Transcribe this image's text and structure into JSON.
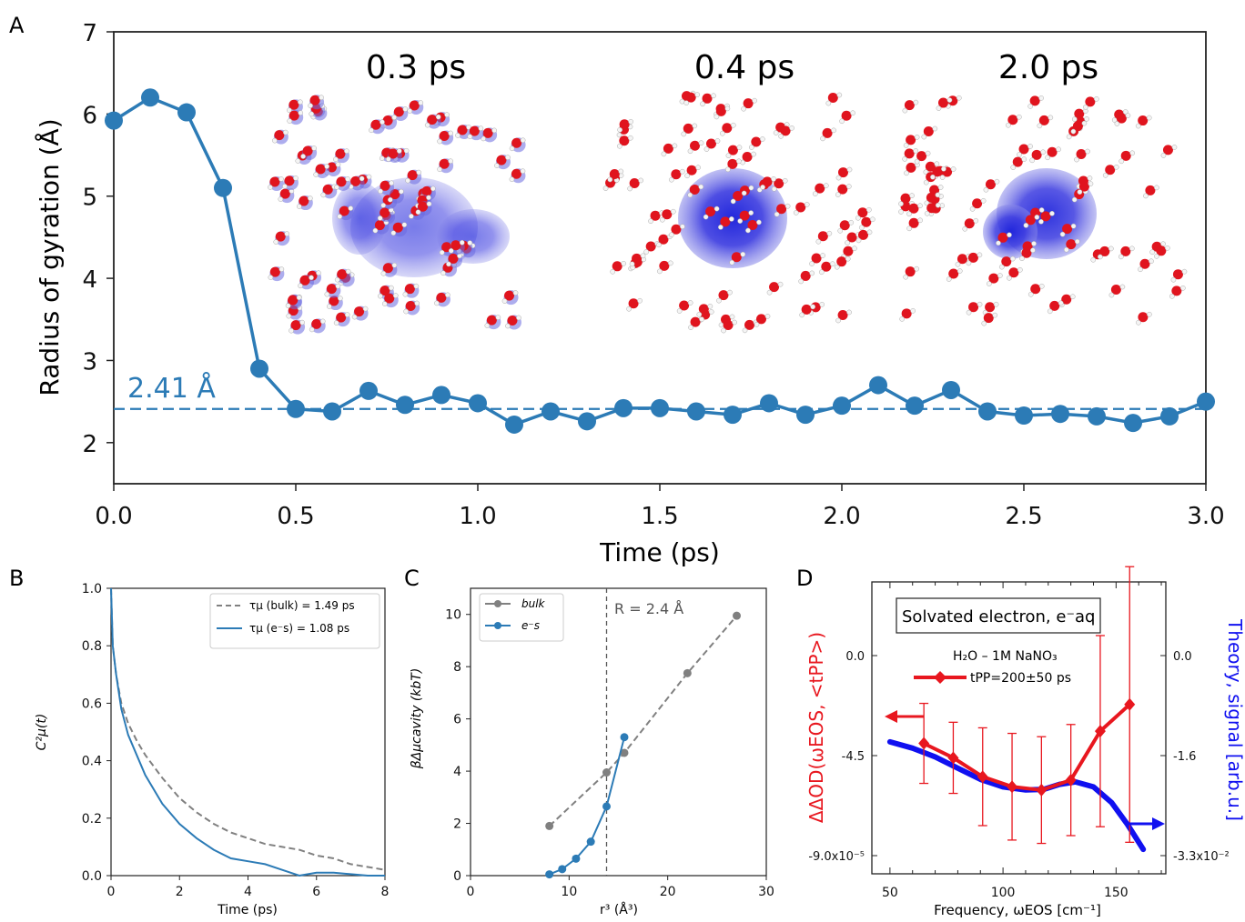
{
  "panel_labels": [
    "A",
    "B",
    "C",
    "D"
  ],
  "chart_data": [
    {
      "panel": "A",
      "type": "line",
      "xlabel": "Time (ps)",
      "ylabel": "Radius of gyration (Å)",
      "xlim": [
        0,
        3.0
      ],
      "ylim": [
        1.5,
        7
      ],
      "xticks": [
        "0.0",
        "0.5",
        "1.0",
        "1.5",
        "2.0",
        "2.5",
        "3.0"
      ],
      "yticks": [
        "2",
        "3",
        "4",
        "5",
        "6",
        "7"
      ],
      "grid": false,
      "color": "#2c7bb6",
      "reference_line": {
        "y": 2.41,
        "label": "2.41 Å"
      },
      "inset_labels": [
        "0.3 ps",
        "0.4 ps",
        "2.0 ps"
      ],
      "x": [
        0.0,
        0.1,
        0.2,
        0.3,
        0.4,
        0.5,
        0.6,
        0.7,
        0.8,
        0.9,
        1.0,
        1.1,
        1.2,
        1.3,
        1.4,
        1.5,
        1.6,
        1.7,
        1.8,
        1.9,
        2.0,
        2.1,
        2.2,
        2.3,
        2.4,
        2.5,
        2.6,
        2.7,
        2.8,
        2.9,
        3.0
      ],
      "y": [
        5.92,
        6.2,
        6.02,
        5.1,
        2.9,
        2.41,
        2.38,
        2.63,
        2.46,
        2.58,
        2.48,
        2.22,
        2.38,
        2.26,
        2.42,
        2.42,
        2.38,
        2.34,
        2.48,
        2.34,
        2.45,
        2.7,
        2.45,
        2.64,
        2.38,
        2.33,
        2.35,
        2.32,
        2.24,
        2.32,
        2.5
      ]
    },
    {
      "panel": "B",
      "type": "line",
      "xlabel": "Time (ps)",
      "ylabel": "C²μ(t)",
      "xlim": [
        0,
        8
      ],
      "ylim": [
        0,
        1.0
      ],
      "xticks": [
        "0",
        "2",
        "4",
        "6",
        "8"
      ],
      "yticks": [
        "0.0",
        "0.2",
        "0.4",
        "0.6",
        "0.8",
        "1.0"
      ],
      "legend_position": "top-right",
      "series": [
        {
          "name": "τμ (bulk) = 1.49 ps",
          "style": "dashed",
          "color": "#808080",
          "x": [
            0,
            0.05,
            0.15,
            0.3,
            0.5,
            0.75,
            1.0,
            1.5,
            2.0,
            2.5,
            3.0,
            3.5,
            4.0,
            4.5,
            5.0,
            5.5,
            6.0,
            6.5,
            7.0,
            7.5,
            8.0
          ],
          "values": [
            1.0,
            0.8,
            0.7,
            0.6,
            0.53,
            0.47,
            0.42,
            0.34,
            0.27,
            0.22,
            0.18,
            0.15,
            0.13,
            0.11,
            0.1,
            0.09,
            0.07,
            0.06,
            0.04,
            0.03,
            0.02
          ]
        },
        {
          "name": "τμ (e⁻s) = 1.08 ps",
          "style": "solid",
          "color": "#2c7bb6",
          "x": [
            0,
            0.05,
            0.15,
            0.3,
            0.5,
            0.75,
            1.0,
            1.5,
            2.0,
            2.5,
            3.0,
            3.5,
            4.0,
            4.5,
            5.0,
            5.5,
            6.0,
            6.5,
            7.0,
            7.5,
            8.0
          ],
          "values": [
            1.0,
            0.8,
            0.7,
            0.58,
            0.49,
            0.42,
            0.35,
            0.25,
            0.18,
            0.13,
            0.09,
            0.06,
            0.05,
            0.04,
            0.02,
            0.0,
            0.01,
            0.01,
            0.005,
            0.0,
            0.0
          ]
        }
      ]
    },
    {
      "panel": "C",
      "type": "line",
      "xlabel": "r³ (Å³)",
      "ylabel": "βΔμcavity (kbT)",
      "xlim": [
        0,
        30
      ],
      "ylim": [
        0,
        11
      ],
      "xticks": [
        "0",
        "10",
        "20",
        "30"
      ],
      "yticks": [
        "0",
        "2",
        "4",
        "6",
        "8",
        "10"
      ],
      "legend_position": "top-left",
      "vline": {
        "x": 13.8,
        "label": "R = 2.4 Å"
      },
      "series": [
        {
          "name": "bulk",
          "style": "dashed",
          "color": "#808080",
          "x": [
            8.0,
            13.8,
            15.6,
            22.0,
            27.0
          ],
          "values": [
            1.9,
            3.95,
            4.7,
            7.75,
            9.95
          ]
        },
        {
          "name": "e⁻s",
          "style": "solid",
          "color": "#2c7bb6",
          "x": [
            8.0,
            9.3,
            10.7,
            12.2,
            13.8,
            15.6
          ],
          "values": [
            0.05,
            0.25,
            0.65,
            1.3,
            2.65,
            5.3
          ]
        }
      ]
    },
    {
      "panel": "D",
      "type": "line",
      "xlabel": "Frequency, ωEOS [cm⁻¹]",
      "ylabel_left": "ΔΔOD(ωEOS, <tPP>)",
      "ylabel_right": "Theory, signal [arb.u.]",
      "xlim": [
        42,
        172
      ],
      "xticks": [
        "50",
        "100",
        "150"
      ],
      "yticks_left": [
        "0.0",
        "-4.5",
        "-9.0x10⁻⁵"
      ],
      "yticks_right": [
        "0.0",
        "-1.6",
        "-3.3x10⁻²"
      ],
      "box_label": "Solvated electron, e⁻aq",
      "sample_label": "H₂O – 1M NaNO₃",
      "series": [
        {
          "name": "tPP=200±50 ps",
          "axis": "left",
          "color": "#e8171f",
          "x": [
            65,
            78,
            91,
            104,
            117,
            130,
            143,
            156
          ],
          "values": [
            -3.95,
            -4.6,
            -5.45,
            -5.9,
            -6.05,
            -5.6,
            -3.4,
            -2.2
          ],
          "error": [
            1.8,
            1.6,
            2.2,
            2.4,
            2.4,
            2.5,
            4.3,
            6.2
          ]
        },
        {
          "name": "Theory",
          "axis": "right",
          "color": "#1010f0",
          "x": [
            50,
            60,
            70,
            80,
            90,
            100,
            110,
            118,
            125,
            132,
            140,
            148,
            155,
            162
          ],
          "values": [
            -1.38,
            -1.48,
            -1.62,
            -1.8,
            -1.98,
            -2.1,
            -2.15,
            -2.14,
            -2.06,
            -2.02,
            -2.1,
            -2.35,
            -2.7,
            -3.1
          ]
        }
      ]
    }
  ]
}
